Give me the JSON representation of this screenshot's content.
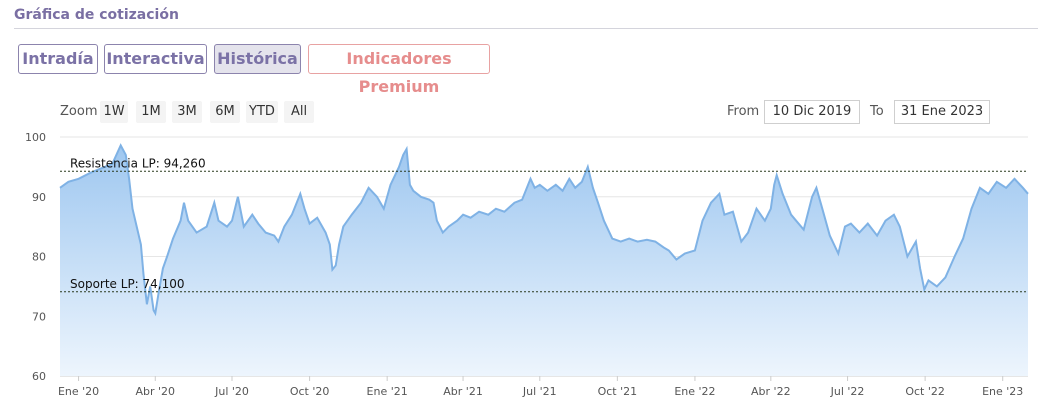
{
  "section": {
    "title": "Gráfica de cotización"
  },
  "tabs": [
    {
      "label": "Intradía",
      "active": false
    },
    {
      "label": "Interactiva",
      "active": false
    },
    {
      "label": "Histórica",
      "active": true
    },
    {
      "label": "Indicadores Premium",
      "active": false
    }
  ],
  "zoom": {
    "label": "Zoom",
    "buttons": [
      "1W",
      "1M",
      "3M",
      "6M",
      "YTD",
      "All"
    ]
  },
  "range": {
    "from_label": "From",
    "from_value": "10 Dic 2019",
    "to_label": "To",
    "to_value": "31 Ene 2023"
  },
  "colors": {
    "series_line": "#7fb2e5",
    "area_top": "#9ec7f0",
    "area_bottom": "#edf5fd",
    "tab_text": "#7b72a6",
    "premium_text": "#e68d8d",
    "level_line": "#2a3a1e"
  },
  "chart_data": {
    "type": "area",
    "ylim": [
      60,
      100
    ],
    "xlim": [
      "2019-12-10",
      "2023-01-31"
    ],
    "yticks": [
      60,
      70,
      80,
      90,
      100
    ],
    "xticks": [
      {
        "date": "2020-01-01",
        "label": "Ene '20"
      },
      {
        "date": "2020-04-01",
        "label": "Abr '20"
      },
      {
        "date": "2020-07-01",
        "label": "Jul '20"
      },
      {
        "date": "2020-10-01",
        "label": "Oct '20"
      },
      {
        "date": "2021-01-01",
        "label": "Ene '21"
      },
      {
        "date": "2021-04-01",
        "label": "Abr '21"
      },
      {
        "date": "2021-07-01",
        "label": "Jul '21"
      },
      {
        "date": "2021-10-01",
        "label": "Oct '21"
      },
      {
        "date": "2022-01-01",
        "label": "Ene '22"
      },
      {
        "date": "2022-04-01",
        "label": "Abr '22"
      },
      {
        "date": "2022-07-01",
        "label": "Jul '22"
      },
      {
        "date": "2022-10-01",
        "label": "Oct '22"
      },
      {
        "date": "2023-01-01",
        "label": "Ene '23"
      }
    ],
    "grid": true,
    "levels": [
      {
        "label": "Resistencia LP: 94,260",
        "value": 94.26
      },
      {
        "label": "Soporte LP: 74,100",
        "value": 74.1
      }
    ],
    "series": [
      {
        "points": [
          [
            "2019-12-10",
            91.5
          ],
          [
            "2019-12-20",
            92.5
          ],
          [
            "2020-01-01",
            93
          ],
          [
            "2020-01-15",
            94
          ],
          [
            "2020-02-01",
            95
          ],
          [
            "2020-02-10",
            95.5
          ],
          [
            "2020-02-20",
            98.6
          ],
          [
            "2020-02-26",
            97
          ],
          [
            "2020-03-01",
            93
          ],
          [
            "2020-03-05",
            88
          ],
          [
            "2020-03-10",
            85
          ],
          [
            "2020-03-15",
            82
          ],
          [
            "2020-03-18",
            77
          ],
          [
            "2020-03-22",
            72
          ],
          [
            "2020-03-26",
            75
          ],
          [
            "2020-03-30",
            71
          ],
          [
            "2020-04-01",
            70.5
          ],
          [
            "2020-04-05",
            74
          ],
          [
            "2020-04-10",
            78
          ],
          [
            "2020-04-15",
            80
          ],
          [
            "2020-04-22",
            83
          ],
          [
            "2020-05-01",
            86
          ],
          [
            "2020-05-05",
            89
          ],
          [
            "2020-05-10",
            86
          ],
          [
            "2020-05-20",
            84
          ],
          [
            "2020-06-01",
            85
          ],
          [
            "2020-06-10",
            89
          ],
          [
            "2020-06-15",
            86
          ],
          [
            "2020-06-25",
            85
          ],
          [
            "2020-07-01",
            86
          ],
          [
            "2020-07-08",
            90
          ],
          [
            "2020-07-15",
            85
          ],
          [
            "2020-07-25",
            87
          ],
          [
            "2020-08-01",
            85.5
          ],
          [
            "2020-08-10",
            84
          ],
          [
            "2020-08-20",
            83.5
          ],
          [
            "2020-08-25",
            82.5
          ],
          [
            "2020-09-01",
            85
          ],
          [
            "2020-09-10",
            87
          ],
          [
            "2020-09-20",
            90.5
          ],
          [
            "2020-09-25",
            88
          ],
          [
            "2020-10-01",
            85.5
          ],
          [
            "2020-10-10",
            86.5
          ],
          [
            "2020-10-20",
            84
          ],
          [
            "2020-10-25",
            82
          ],
          [
            "2020-10-28",
            77.8
          ],
          [
            "2020-11-01",
            78.5
          ],
          [
            "2020-11-05",
            82
          ],
          [
            "2020-11-10",
            85
          ],
          [
            "2020-11-20",
            87
          ],
          [
            "2020-12-01",
            89
          ],
          [
            "2020-12-10",
            91.5
          ],
          [
            "2020-12-20",
            90
          ],
          [
            "2020-12-28",
            88
          ],
          [
            "2021-01-05",
            92
          ],
          [
            "2021-01-10",
            93.5
          ],
          [
            "2021-01-15",
            95
          ],
          [
            "2021-01-20",
            97
          ],
          [
            "2021-01-24",
            98
          ],
          [
            "2021-01-28",
            92
          ],
          [
            "2021-02-01",
            91
          ],
          [
            "2021-02-10",
            90
          ],
          [
            "2021-02-20",
            89.5
          ],
          [
            "2021-02-25",
            89
          ],
          [
            "2021-03-01",
            86
          ],
          [
            "2021-03-08",
            84
          ],
          [
            "2021-03-15",
            85
          ],
          [
            "2021-03-25",
            86
          ],
          [
            "2021-04-01",
            87
          ],
          [
            "2021-04-10",
            86.5
          ],
          [
            "2021-04-20",
            87.5
          ],
          [
            "2021-05-01",
            87
          ],
          [
            "2021-05-10",
            88
          ],
          [
            "2021-05-20",
            87.5
          ],
          [
            "2021-06-01",
            89
          ],
          [
            "2021-06-10",
            89.5
          ],
          [
            "2021-06-20",
            93
          ],
          [
            "2021-06-25",
            91.5
          ],
          [
            "2021-07-01",
            92
          ],
          [
            "2021-07-10",
            91
          ],
          [
            "2021-07-20",
            92
          ],
          [
            "2021-07-28",
            91
          ],
          [
            "2021-08-05",
            93
          ],
          [
            "2021-08-12",
            91.5
          ],
          [
            "2021-08-20",
            92.5
          ],
          [
            "2021-08-27",
            95
          ],
          [
            "2021-09-02",
            91.5
          ],
          [
            "2021-09-08",
            89
          ],
          [
            "2021-09-15",
            86
          ],
          [
            "2021-09-25",
            83
          ],
          [
            "2021-10-05",
            82.5
          ],
          [
            "2021-10-15",
            83
          ],
          [
            "2021-10-25",
            82.5
          ],
          [
            "2021-11-05",
            82.8
          ],
          [
            "2021-11-15",
            82.5
          ],
          [
            "2021-11-25",
            81.5
          ],
          [
            "2021-12-01",
            81
          ],
          [
            "2021-12-10",
            79.5
          ],
          [
            "2021-12-20",
            80.5
          ],
          [
            "2022-01-01",
            81
          ],
          [
            "2022-01-10",
            86
          ],
          [
            "2022-01-20",
            89
          ],
          [
            "2022-01-30",
            90.5
          ],
          [
            "2022-02-05",
            87
          ],
          [
            "2022-02-15",
            87.5
          ],
          [
            "2022-02-25",
            82.5
          ],
          [
            "2022-03-05",
            84
          ],
          [
            "2022-03-15",
            88
          ],
          [
            "2022-03-25",
            86
          ],
          [
            "2022-04-01",
            88
          ],
          [
            "2022-04-05",
            92
          ],
          [
            "2022-04-08",
            93.6
          ],
          [
            "2022-04-15",
            90.5
          ],
          [
            "2022-04-25",
            87
          ],
          [
            "2022-05-01",
            86
          ],
          [
            "2022-05-10",
            84.5
          ],
          [
            "2022-05-20",
            90
          ],
          [
            "2022-05-25",
            91.5
          ],
          [
            "2022-06-01",
            88
          ],
          [
            "2022-06-10",
            83.5
          ],
          [
            "2022-06-20",
            80.5
          ],
          [
            "2022-06-28",
            85
          ],
          [
            "2022-07-05",
            85.5
          ],
          [
            "2022-07-15",
            84
          ],
          [
            "2022-07-25",
            85.5
          ],
          [
            "2022-08-05",
            83.5
          ],
          [
            "2022-08-15",
            86
          ],
          [
            "2022-08-25",
            87
          ],
          [
            "2022-09-01",
            85
          ],
          [
            "2022-09-10",
            80
          ],
          [
            "2022-09-20",
            82.5
          ],
          [
            "2022-09-25",
            78
          ],
          [
            "2022-09-30",
            74.5
          ],
          [
            "2022-10-05",
            76
          ],
          [
            "2022-10-15",
            75
          ],
          [
            "2022-10-25",
            76.5
          ],
          [
            "2022-11-05",
            80
          ],
          [
            "2022-11-15",
            83
          ],
          [
            "2022-11-25",
            88
          ],
          [
            "2022-12-05",
            91.5
          ],
          [
            "2022-12-15",
            90.5
          ],
          [
            "2022-12-25",
            92.5
          ],
          [
            "2023-01-05",
            91.5
          ],
          [
            "2023-01-15",
            93
          ],
          [
            "2023-01-25",
            91.5
          ],
          [
            "2023-01-31",
            90.5
          ]
        ]
      }
    ]
  }
}
